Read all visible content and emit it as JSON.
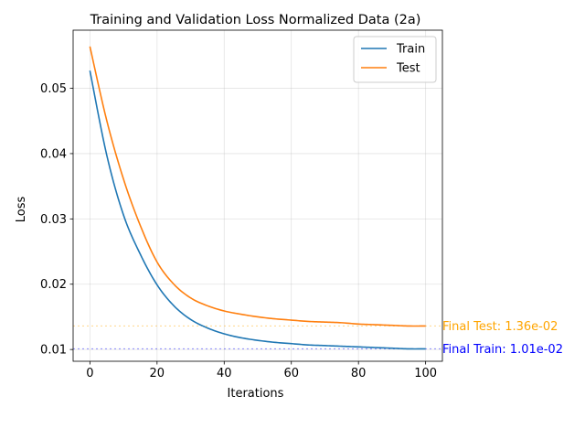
{
  "chart_data": {
    "type": "line",
    "title": "Training and Validation Loss Normalized Data (2a)",
    "xlabel": "Iterations",
    "ylabel": "Loss",
    "xlim": [
      -5,
      105
    ],
    "ylim": [
      0.0082,
      0.0589
    ],
    "xticks": [
      0,
      20,
      40,
      60,
      80,
      100
    ],
    "xtick_labels": [
      "0",
      "20",
      "40",
      "60",
      "80",
      "100"
    ],
    "yticks": [
      0.01,
      0.02,
      0.03,
      0.04,
      0.05
    ],
    "ytick_labels": [
      "0.01",
      "0.02",
      "0.03",
      "0.04",
      "0.05"
    ],
    "grid": true,
    "legend_position": "top-right",
    "x": [
      0,
      5,
      10,
      15,
      20,
      25,
      30,
      35,
      40,
      45,
      50,
      55,
      60,
      65,
      70,
      75,
      80,
      85,
      90,
      95,
      100
    ],
    "series": [
      {
        "name": "Train",
        "color": "#1f77b4",
        "values": [
          0.0527,
          0.0398,
          0.0306,
          0.0246,
          0.0199,
          0.0167,
          0.0146,
          0.0133,
          0.0124,
          0.0118,
          0.0114,
          0.0111,
          0.0109,
          0.0107,
          0.0106,
          0.0105,
          0.0104,
          0.0103,
          0.0102,
          0.0101,
          0.0101
        ]
      },
      {
        "name": "Test",
        "color": "#ff7f0e",
        "values": [
          0.0564,
          0.0451,
          0.0361,
          0.029,
          0.0234,
          0.02,
          0.0179,
          0.0167,
          0.0159,
          0.0154,
          0.015,
          0.0147,
          0.0145,
          0.0143,
          0.0142,
          0.0141,
          0.0139,
          0.0138,
          0.0137,
          0.0136,
          0.0136
        ]
      }
    ],
    "reference_lines": [
      {
        "y": 0.0136,
        "color": "#ffa500"
      },
      {
        "y": 0.0101,
        "color": "#0000ff"
      }
    ],
    "annotations": [
      {
        "text": "Final Test: 1.36e-02",
        "y": 0.0136,
        "color": "#ffa500"
      },
      {
        "text": "Final Train: 1.01e-02",
        "y": 0.0101,
        "color": "#0000ff"
      }
    ]
  }
}
